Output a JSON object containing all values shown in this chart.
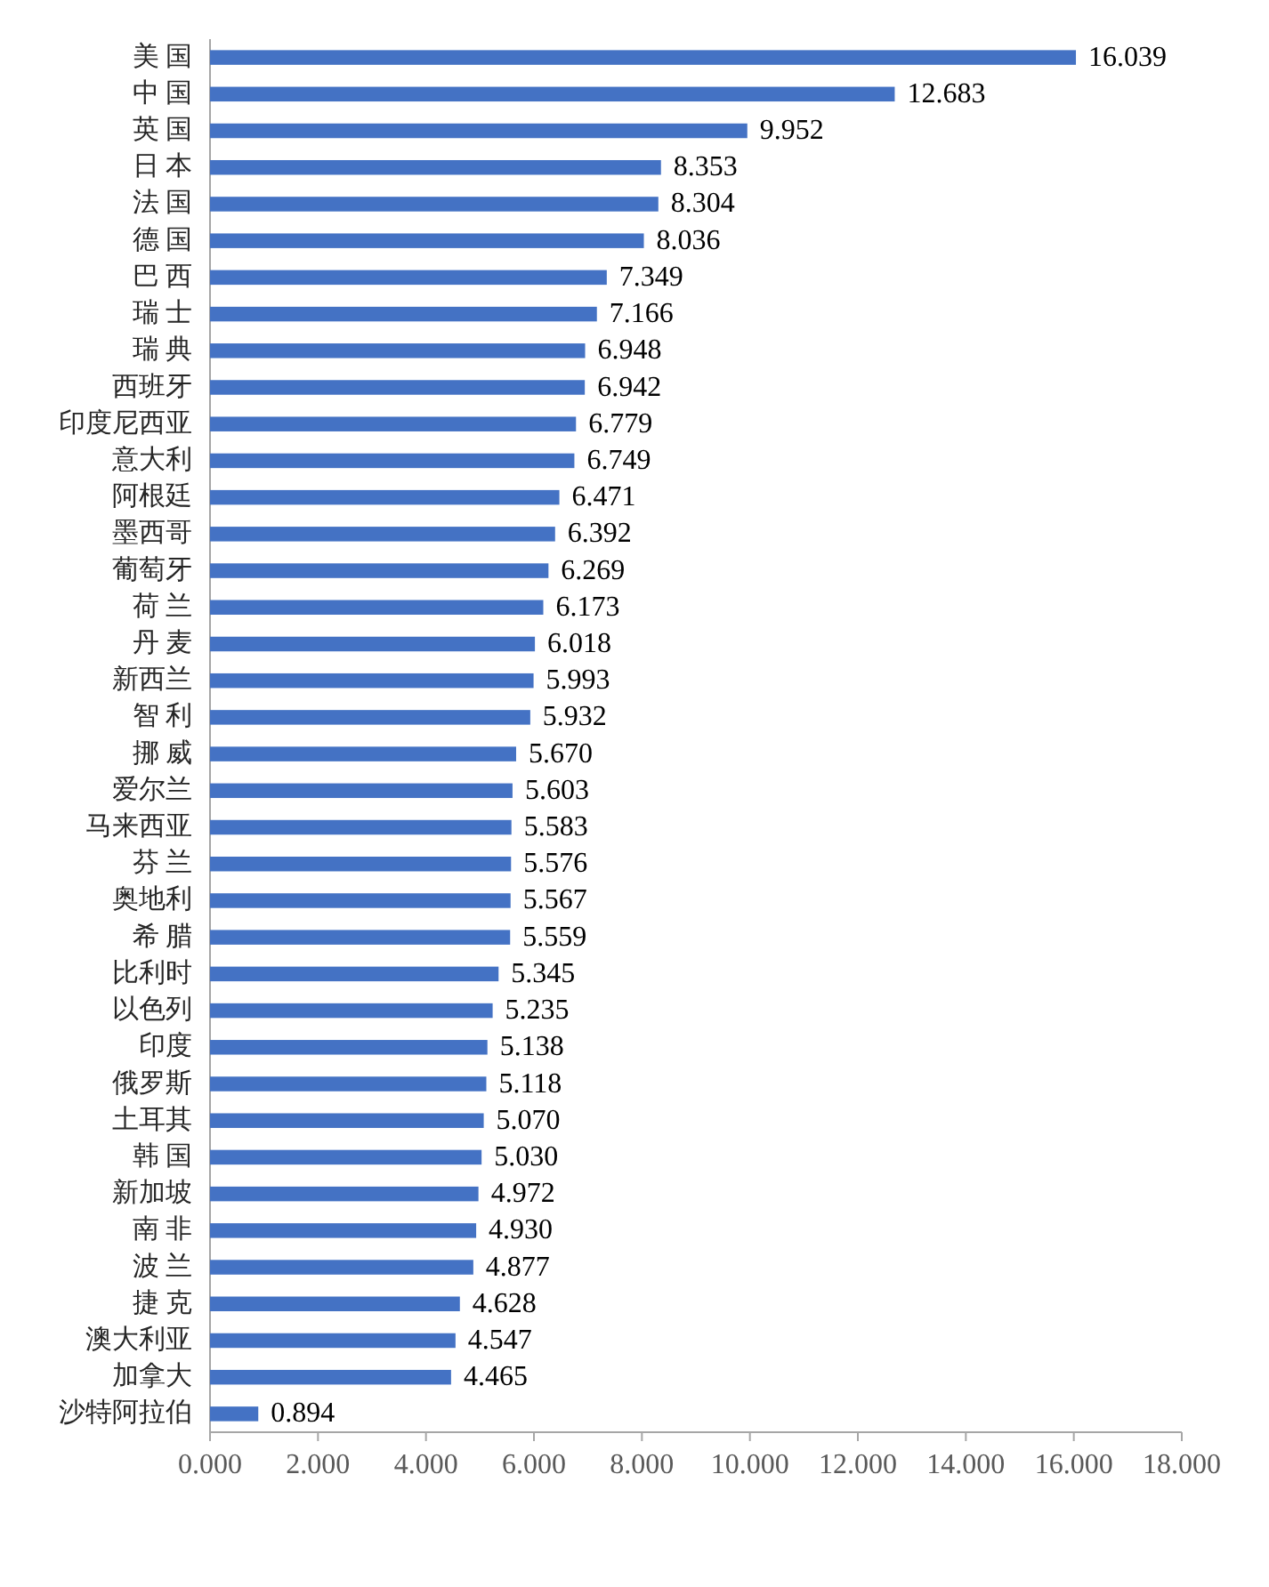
{
  "chart_data": {
    "type": "bar",
    "orientation": "horizontal",
    "categories": [
      "美 国",
      "中 国",
      "英 国",
      "日 本",
      "法 国",
      "德 国",
      "巴 西",
      "瑞 士",
      "瑞 典",
      "西班牙",
      "印度尼西亚",
      "意大利",
      "阿根廷",
      "墨西哥",
      "葡萄牙",
      "荷 兰",
      "丹 麦",
      "新西兰",
      "智 利",
      "挪 威",
      "爱尔兰",
      "马来西亚",
      "芬 兰",
      "奥地利",
      "希 腊",
      "比利时",
      "以色列",
      "印度",
      "俄罗斯",
      "土耳其",
      "韩 国",
      "新加坡",
      "南 非",
      "波 兰",
      "捷 克",
      "澳大利亚",
      "加拿大",
      "沙特阿拉伯"
    ],
    "values": [
      16.039,
      12.683,
      9.952,
      8.353,
      8.304,
      8.036,
      7.349,
      7.166,
      6.948,
      6.942,
      6.779,
      6.749,
      6.471,
      6.392,
      6.269,
      6.173,
      6.018,
      5.993,
      5.932,
      5.67,
      5.603,
      5.583,
      5.576,
      5.567,
      5.559,
      5.345,
      5.235,
      5.138,
      5.118,
      5.07,
      5.03,
      4.972,
      4.93,
      4.877,
      4.628,
      4.547,
      4.465,
      0.894
    ],
    "value_labels": [
      "16.039",
      "12.683",
      "9.952",
      "8.353",
      "8.304",
      "8.036",
      "7.349",
      "7.166",
      "6.948",
      "6.942",
      "6.779",
      "6.749",
      "6.471",
      "6.392",
      "6.269",
      "6.173",
      "6.018",
      "5.993",
      "5.932",
      "5.670",
      "5.603",
      "5.583",
      "5.576",
      "5.567",
      "5.559",
      "5.345",
      "5.235",
      "5.138",
      "5.118",
      "5.070",
      "5.030",
      "4.972",
      "4.930",
      "4.877",
      "4.628",
      "4.547",
      "4.465",
      "0.894"
    ],
    "color": "#4472c4",
    "xlim": [
      0,
      18
    ],
    "xticks": [
      {
        "value": 0,
        "label": "0.000"
      },
      {
        "value": 2,
        "label": "2.000"
      },
      {
        "value": 4,
        "label": "4.000"
      },
      {
        "value": 6,
        "label": "6.000"
      },
      {
        "value": 8,
        "label": "8.000"
      },
      {
        "value": 10,
        "label": "10.000"
      },
      {
        "value": 12,
        "label": "12.000"
      },
      {
        "value": 14,
        "label": "14.000"
      },
      {
        "value": 16,
        "label": "16.000"
      },
      {
        "value": 18,
        "label": "18.000"
      }
    ],
    "grid": false
  }
}
